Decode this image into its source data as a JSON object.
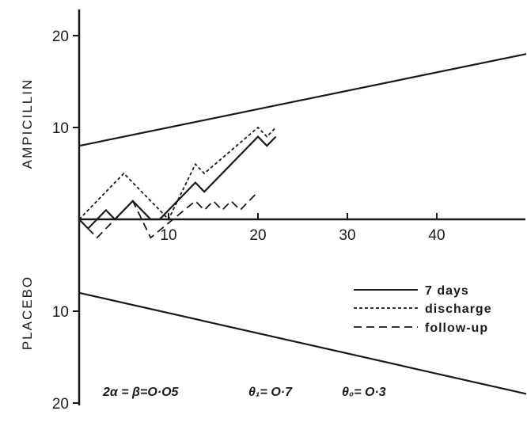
{
  "chart_data": {
    "type": "line",
    "title": "",
    "xlabel": "",
    "ylabel": "",
    "xlim": [
      0,
      50
    ],
    "ylim": [
      -20,
      20
    ],
    "x_ticks": [
      10,
      20,
      30,
      40
    ],
    "y_ticks": [
      {
        "value": 20,
        "label": "20"
      },
      {
        "value": 10,
        "label": "10"
      },
      {
        "value": -10,
        "label": "10"
      },
      {
        "value": -20,
        "label": "20"
      }
    ],
    "side_labels": {
      "upper": "AMPICILLIN",
      "lower": "PLACEBO"
    },
    "boundaries": [
      {
        "x": [
          0,
          50
        ],
        "y": [
          8,
          18
        ]
      },
      {
        "x": [
          0,
          50
        ],
        "y": [
          -8,
          -19
        ]
      }
    ],
    "series": [
      {
        "name": "7 days",
        "style": "solid",
        "x": [
          0,
          1,
          3,
          4,
          6,
          8,
          9,
          13,
          14,
          20,
          21,
          22
        ],
        "y": [
          0,
          -1,
          1,
          0,
          2,
          0,
          0,
          4,
          3,
          9,
          8,
          9
        ]
      },
      {
        "name": "discharge",
        "style": "dotted",
        "x": [
          0,
          5,
          10,
          13,
          14,
          20,
          21,
          22
        ],
        "y": [
          0,
          5,
          0,
          6,
          5,
          10,
          9,
          10
        ]
      },
      {
        "name": "follow-up",
        "style": "dashed",
        "x": [
          0,
          2,
          6,
          8,
          13,
          14,
          15,
          16,
          17,
          18,
          19,
          20
        ],
        "y": [
          0,
          -2,
          2,
          -2,
          2,
          1,
          2,
          1,
          2,
          1,
          2,
          3
        ]
      }
    ],
    "legend": {
      "position": "bottom-right"
    },
    "grid": false,
    "annotation": {
      "alpha_part": "2α = β=O·O5",
      "theta1_part": "θ₁= O·7",
      "theta0_part": "θ₀= O·3"
    }
  }
}
